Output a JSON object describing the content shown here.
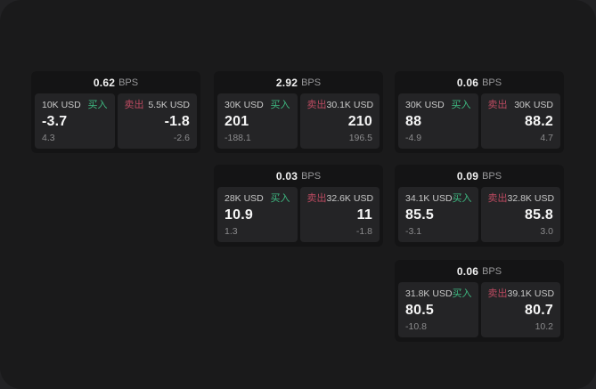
{
  "colors": {
    "page_background": "#1a1a1b",
    "outer_background": "#222224",
    "card_background": "#141415",
    "panel_background": "#242426",
    "buy_green": "#3eb981",
    "sell_red": "#bb4a60",
    "primary_text": "#f5f5f5",
    "secondary_text": "#c9c9c9",
    "muted_text": "#8b8b8d"
  },
  "labels": {
    "bps_unit": "BPS",
    "buy": "买入",
    "sell": "卖出"
  },
  "cards": [
    {
      "bps": "0.62",
      "buy": {
        "amount": "10K USD",
        "label": "买入",
        "price": "-3.7",
        "delta": "4.3"
      },
      "sell": {
        "label": "卖出",
        "amount": "5.5K USD",
        "price": "-1.8",
        "delta": "-2.6"
      }
    },
    {
      "bps": "2.92",
      "buy": {
        "amount": "30K USD",
        "label": "买入",
        "price": "201",
        "delta": "-188.1"
      },
      "sell": {
        "label": "卖出",
        "amount": "30.1K USD",
        "price": "210",
        "delta": "196.5"
      }
    },
    {
      "bps": "0.06",
      "buy": {
        "amount": "30K USD",
        "label": "买入",
        "price": "88",
        "delta": "-4.9"
      },
      "sell": {
        "label": "卖出",
        "amount": "30K USD",
        "price": "88.2",
        "delta": "4.7"
      }
    },
    {
      "bps": "0.03",
      "buy": {
        "amount": "28K USD",
        "label": "买入",
        "price": "10.9",
        "delta": "1.3"
      },
      "sell": {
        "label": "卖出",
        "amount": "32.6K USD",
        "price": "11",
        "delta": "-1.8"
      }
    },
    {
      "bps": "0.09",
      "buy": {
        "amount": "34.1K USD",
        "label": "买入",
        "price": "85.5",
        "delta": "-3.1"
      },
      "sell": {
        "label": "卖出",
        "amount": "32.8K USD",
        "price": "85.8",
        "delta": "3.0"
      }
    },
    {
      "bps": "0.06",
      "buy": {
        "amount": "31.8K USD",
        "label": "买入",
        "price": "80.5",
        "delta": "-10.8"
      },
      "sell": {
        "label": "卖出",
        "amount": "39.1K USD",
        "price": "80.7",
        "delta": "10.2"
      }
    }
  ]
}
